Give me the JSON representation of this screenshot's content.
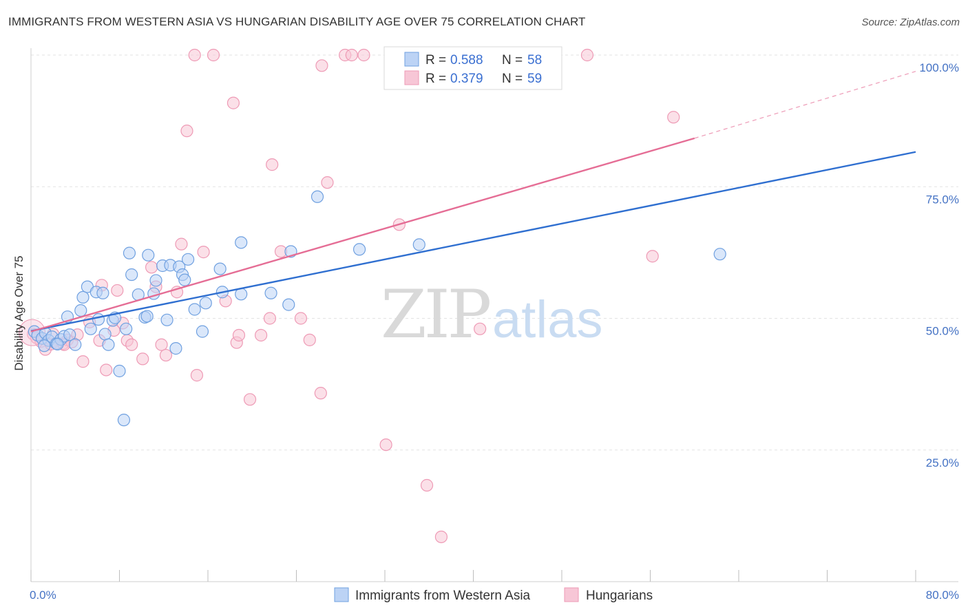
{
  "title": "IMMIGRANTS FROM WESTERN ASIA VS HUNGARIAN DISABILITY AGE OVER 75 CORRELATION CHART",
  "source": "Source: ZipAtlas.com",
  "watermark": {
    "zip": "ZIP",
    "atlas": "atlas"
  },
  "colors": {
    "blue": "#6fa0e0",
    "blue_fill": "#bcd3f5",
    "blue_line": "#2f6fd0",
    "pink": "#ee9ab5",
    "pink_fill": "#f7c6d6",
    "pink_line": "#e56d95",
    "tick": "#4472c4",
    "grid": "#e3e3e3"
  },
  "legend": {
    "rows": [
      {
        "r_label": "R =",
        "r_value": "0.588",
        "n_label": "N =",
        "n_value": "58"
      },
      {
        "r_label": "R =",
        "r_value": "0.379",
        "n_label": "N =",
        "n_value": "59"
      }
    ]
  },
  "bottom_legend": [
    "Immigrants from Western Asia",
    "Hungarians"
  ],
  "chart_data": {
    "type": "scatter",
    "title": "IMMIGRANTS FROM WESTERN ASIA VS HUNGARIAN DISABILITY AGE OVER 75 CORRELATION CHART",
    "xlabel": "",
    "ylabel": "Disability Age Over 75",
    "xlim": [
      0,
      80
    ],
    "ylim": [
      0,
      102
    ],
    "x_tick_labels": [
      "0.0%",
      "80.0%"
    ],
    "y_ticks": [
      25,
      50,
      75,
      100
    ],
    "y_tick_labels": [
      "25.0%",
      "50.0%",
      "75.0%",
      "100.0%"
    ],
    "grid": true,
    "legend_position": "top-center",
    "series": [
      {
        "name": "Immigrants from Western Asia",
        "color": "#6fa0e0",
        "r": 0.588,
        "n": 58,
        "trend": {
          "x": [
            0,
            80
          ],
          "y": [
            47.6,
            81.6
          ]
        },
        "points": [
          [
            0.3,
            47.5
          ],
          [
            0.6,
            46.8
          ],
          [
            1.0,
            46.2
          ],
          [
            1.3,
            47.2
          ],
          [
            1.6,
            45.8
          ],
          [
            1.9,
            46.5
          ],
          [
            2.3,
            45.2
          ],
          [
            2.7,
            46.0
          ],
          [
            3.0,
            46.6
          ],
          [
            3.5,
            46.9
          ],
          [
            3.3,
            50.3
          ],
          [
            4.0,
            45.0
          ],
          [
            4.5,
            51.5
          ],
          [
            4.7,
            54.0
          ],
          [
            5.1,
            56.0
          ],
          [
            5.4,
            48.0
          ],
          [
            5.9,
            55.0
          ],
          [
            6.1,
            49.8
          ],
          [
            6.5,
            54.8
          ],
          [
            6.7,
            47.0
          ],
          [
            7.0,
            45.0
          ],
          [
            7.4,
            49.6
          ],
          [
            7.6,
            50.1
          ],
          [
            8.0,
            40.0
          ],
          [
            8.4,
            30.7
          ],
          [
            8.6,
            48.0
          ],
          [
            8.9,
            62.4
          ],
          [
            9.1,
            58.3
          ],
          [
            9.7,
            54.5
          ],
          [
            10.3,
            50.2
          ],
          [
            10.5,
            50.4
          ],
          [
            10.6,
            62.0
          ],
          [
            11.1,
            54.7
          ],
          [
            11.3,
            57.2
          ],
          [
            11.9,
            60.0
          ],
          [
            12.3,
            49.7
          ],
          [
            12.6,
            60.1
          ],
          [
            13.1,
            44.3
          ],
          [
            13.4,
            59.8
          ],
          [
            13.7,
            58.3
          ],
          [
            13.9,
            57.3
          ],
          [
            14.2,
            61.2
          ],
          [
            14.8,
            51.7
          ],
          [
            15.5,
            47.5
          ],
          [
            15.8,
            52.9
          ],
          [
            17.3,
            55.0
          ],
          [
            17.1,
            59.4
          ],
          [
            19.0,
            54.6
          ],
          [
            19.0,
            64.4
          ],
          [
            21.7,
            54.8
          ],
          [
            23.3,
            52.6
          ],
          [
            23.5,
            62.7
          ],
          [
            25.9,
            73.1
          ],
          [
            29.7,
            63.1
          ],
          [
            35.1,
            64.0
          ],
          [
            62.3,
            62.2
          ],
          [
            1.2,
            44.8
          ],
          [
            2.4,
            45.1
          ]
        ]
      },
      {
        "name": "Hungarians",
        "color": "#ee9ab5",
        "r": 0.379,
        "n": 59,
        "trend": {
          "x": [
            0,
            60
          ],
          "y": [
            47.5,
            84.2
          ]
        },
        "trend_dashed": {
          "x": [
            60,
            80
          ],
          "y": [
            84.2,
            96.9
          ]
        },
        "points": [
          [
            0.2,
            47.0
          ],
          [
            0.5,
            46.3
          ],
          [
            0.9,
            45.6
          ],
          [
            1.3,
            44.1
          ],
          [
            1.8,
            45.1
          ],
          [
            2.0,
            47.0
          ],
          [
            2.4,
            45.3
          ],
          [
            2.9,
            45.2
          ],
          [
            3.3,
            45.9
          ],
          [
            3.7,
            45.5
          ],
          [
            4.2,
            46.9
          ],
          [
            4.7,
            41.8
          ],
          [
            5.3,
            49.3
          ],
          [
            6.2,
            45.8
          ],
          [
            6.4,
            56.3
          ],
          [
            6.8,
            40.2
          ],
          [
            7.5,
            47.7
          ],
          [
            7.8,
            55.3
          ],
          [
            8.3,
            49.1
          ],
          [
            8.7,
            45.8
          ],
          [
            9.1,
            45.0
          ],
          [
            10.1,
            42.3
          ],
          [
            10.9,
            59.7
          ],
          [
            11.3,
            56.0
          ],
          [
            11.8,
            45.0
          ],
          [
            12.2,
            43.0
          ],
          [
            13.2,
            55.0
          ],
          [
            13.6,
            64.1
          ],
          [
            14.1,
            85.6
          ],
          [
            15.0,
            39.2
          ],
          [
            15.6,
            62.6
          ],
          [
            14.8,
            100
          ],
          [
            16.5,
            100
          ],
          [
            17.6,
            53.3
          ],
          [
            18.3,
            90.9
          ],
          [
            18.6,
            45.4
          ],
          [
            18.8,
            46.8
          ],
          [
            19.8,
            34.6
          ],
          [
            20.8,
            46.8
          ],
          [
            21.6,
            50.0
          ],
          [
            21.8,
            79.2
          ],
          [
            22.6,
            62.7
          ],
          [
            24.4,
            50.0
          ],
          [
            25.2,
            45.9
          ],
          [
            26.2,
            35.8
          ],
          [
            26.3,
            98.0
          ],
          [
            26.8,
            75.8
          ],
          [
            28.4,
            100
          ],
          [
            29.0,
            100
          ],
          [
            30.1,
            100
          ],
          [
            32.1,
            26.0
          ],
          [
            33.3,
            67.8
          ],
          [
            35.8,
            18.3
          ],
          [
            37.1,
            8.5
          ],
          [
            40.6,
            48.0
          ],
          [
            50.3,
            100
          ],
          [
            56.2,
            61.8
          ],
          [
            58.1,
            88.2
          ],
          [
            3.0,
            45.0
          ]
        ]
      }
    ]
  }
}
